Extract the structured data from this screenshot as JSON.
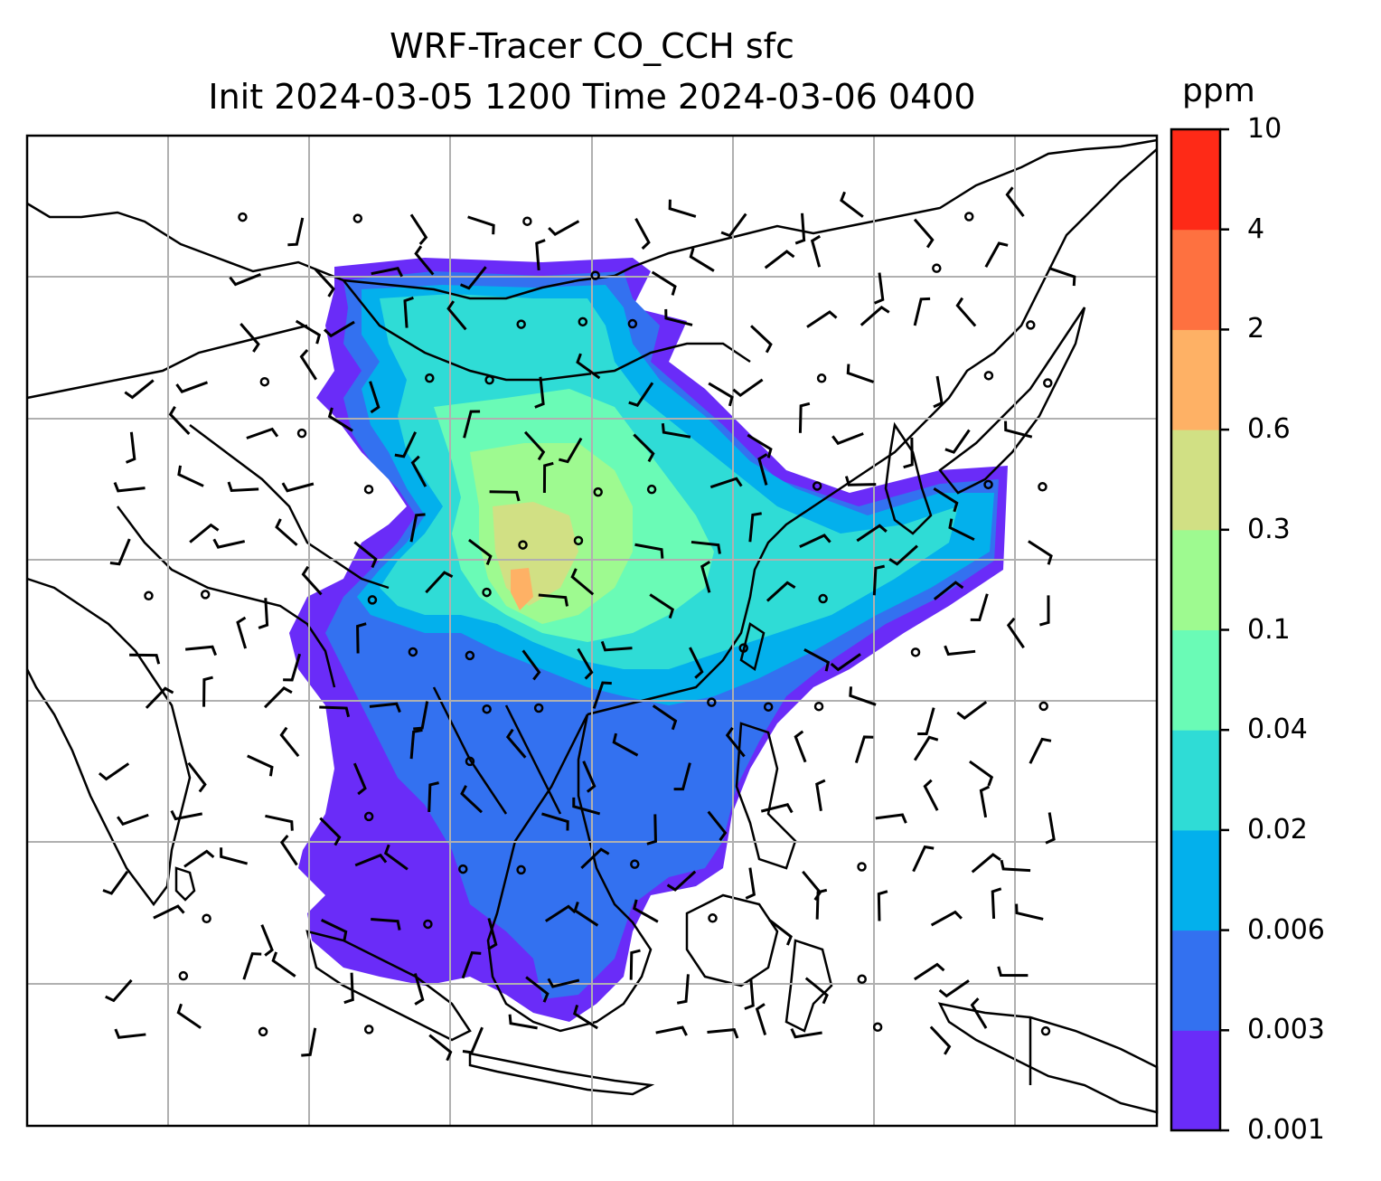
{
  "title": {
    "line1": "WRF-Tracer CO_CCH sfc",
    "line2": "Init 2024-03-05 1200 Time 2024-03-06 0400"
  },
  "colorbar": {
    "unit": "ppm",
    "levels": [
      "0.001",
      "0.003",
      "0.006",
      "0.02",
      "0.04",
      "0.1",
      "0.3",
      "0.6",
      "2",
      "4",
      "10"
    ],
    "colors": [
      "#6a2cf8",
      "#3371f0",
      "#03b0ec",
      "#2fdcd6",
      "#6afbb6",
      "#9efa90",
      "#d1e084",
      "#feb165",
      "#fe7140",
      "#fe2a17"
    ]
  },
  "map": {
    "gridlines": true,
    "features": [
      "coastlines",
      "country-borders",
      "wind-barbs",
      "calm-circles",
      "tracer-contours"
    ]
  }
}
